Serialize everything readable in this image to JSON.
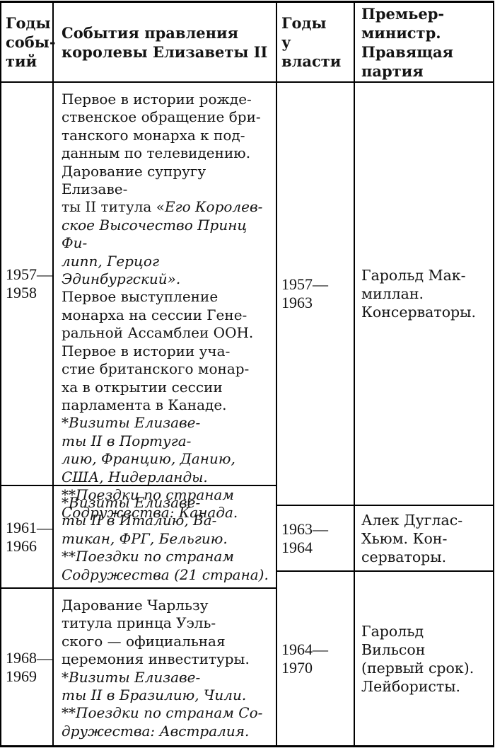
{
  "colors": {
    "background": "#ffffff",
    "border": "#000000",
    "text": "#141414"
  },
  "header": {
    "event_years": "Годы\nсобы-\nтий",
    "events": "События правления\nкоролевы Елизаветы II",
    "power_years": "Годы\nу\nвласти",
    "pm_party": "Премьер-\nминистр.\nПравящая\nпартия"
  },
  "events_rows": [
    {
      "years": "1957—\n1958",
      "segments": [
        {
          "style": "regular",
          "text": "Первое в истории рожде-\nственское обращение бри-\nтанского монарха к под-\nданным по телевидению.\nДарование супругу Елизаве-\nты II титула «"
        },
        {
          "style": "italic",
          "text": "Его Королев-\nское Высочество Принц Фи-\nлипп, Герцог Эдинбургский»."
        },
        {
          "style": "regular",
          "text": "\nПервое выступление\nмонарха на сессии Гене-\nральной Ассамблеи ООН.\nПервое в истории уча-\nстие британского монар-\nха в открытии сессии\nпарламента в Канаде."
        },
        {
          "style": "italic",
          "text": "\n*Визиты Елизаве-\nты II в Португа-\nлию, Францию, Данию,\nСША, Нидерланды.\n**Поездки по странам\nСодружества: Канада."
        }
      ]
    },
    {
      "years": "1961—\n1966",
      "segments": [
        {
          "style": "italic",
          "text": "*Визиты Елизаве-\nты II в Италию, Ва-\nтикан, ФРГ, Бельгию.\n**Поездки по странам\nСодружества (21 страна)."
        }
      ]
    },
    {
      "years": "1968—\n1969",
      "segments": [
        {
          "style": "regular",
          "text": "Дарование Чарльзу\nтитула принца Уэль-\nского — официальная\nцеремония инвеституры."
        },
        {
          "style": "italic",
          "text": "\n*Визиты Елизаве-\nты II в Бразилию, Чили.\n**Поездки по странам Со-\nдружества: Австралия."
        }
      ]
    }
  ],
  "pm_rows": [
    {
      "years": "1957—\n1963",
      "pm": "Гарольд Мак-\nмиллан.\nКонсерваторы."
    },
    {
      "years": "1963—\n1964",
      "pm": "Алек Дуглас-\nХьюм. Кон-\nсерваторы."
    },
    {
      "years": "1964—\n1970",
      "pm": "Гарольд\nВильсон\n(первый срок).\nЛейбористы."
    }
  ]
}
